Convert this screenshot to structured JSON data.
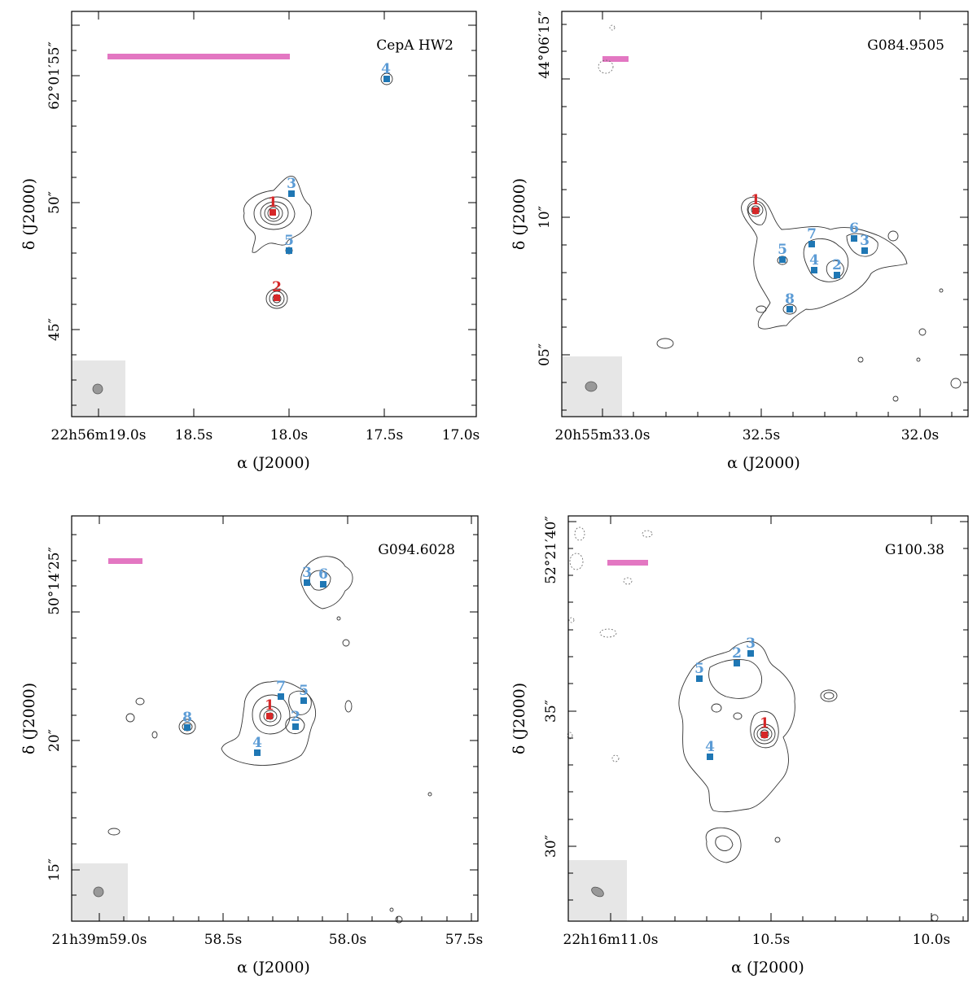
{
  "chart_data": [
    {
      "type": "scatter",
      "title": "CepA HW2",
      "xlabel": "α (J2000)",
      "ylabel": "δ (J2000)",
      "xticks": [
        "22h56m19.0s",
        "18.5s",
        "18.0s",
        "17.5s",
        "17.0s"
      ],
      "yticks": [
        "62°01′55″",
        "50″",
        "45″"
      ],
      "colors": {
        "primary": "#d62728",
        "secondary": "#1f77b4",
        "scalebar": "#e377c2",
        "beam_box": "#e6e6e6"
      },
      "sources": [
        {
          "id": "1",
          "kind": "primary"
        },
        {
          "id": "2",
          "kind": "primary"
        },
        {
          "id": "3",
          "kind": "secondary"
        },
        {
          "id": "4",
          "kind": "secondary"
        },
        {
          "id": "5",
          "kind": "secondary"
        }
      ]
    },
    {
      "type": "scatter",
      "title": "G084.9505",
      "xlabel": "α (J2000)",
      "ylabel": "δ (J2000)",
      "xticks": [
        "20h55m33.0s",
        "32.5s",
        "32.0s"
      ],
      "yticks": [
        "44°06′15″",
        "10″",
        "05″"
      ],
      "colors": {
        "primary": "#d62728",
        "secondary": "#1f77b4",
        "scalebar": "#e377c2",
        "beam_box": "#e6e6e6"
      },
      "sources": [
        {
          "id": "1",
          "kind": "primary"
        },
        {
          "id": "2",
          "kind": "secondary"
        },
        {
          "id": "3",
          "kind": "secondary"
        },
        {
          "id": "4",
          "kind": "secondary"
        },
        {
          "id": "5",
          "kind": "secondary"
        },
        {
          "id": "6",
          "kind": "secondary"
        },
        {
          "id": "7",
          "kind": "secondary"
        },
        {
          "id": "8",
          "kind": "secondary"
        }
      ]
    },
    {
      "type": "scatter",
      "title": "G094.6028",
      "xlabel": "α (J2000)",
      "ylabel": "δ (J2000)",
      "xticks": [
        "21h39m59.0s",
        "58.5s",
        "58.0s",
        "57.5s"
      ],
      "yticks": [
        "50°14′25″",
        "20″",
        "15″"
      ],
      "colors": {
        "primary": "#d62728",
        "secondary": "#1f77b4",
        "scalebar": "#e377c2",
        "beam_box": "#e6e6e6"
      },
      "sources": [
        {
          "id": "1",
          "kind": "primary"
        },
        {
          "id": "2",
          "kind": "secondary"
        },
        {
          "id": "3",
          "kind": "secondary"
        },
        {
          "id": "4",
          "kind": "secondary"
        },
        {
          "id": "5",
          "kind": "secondary"
        },
        {
          "id": "6",
          "kind": "secondary"
        },
        {
          "id": "7",
          "kind": "secondary"
        },
        {
          "id": "8",
          "kind": "secondary"
        }
      ]
    },
    {
      "type": "scatter",
      "title": "G100.38",
      "xlabel": "α (J2000)",
      "ylabel": "δ (J2000)",
      "xticks": [
        "22h16m11.0s",
        "10.5s",
        "10.0s"
      ],
      "yticks": [
        "52°21′40″",
        "35″",
        "30″"
      ],
      "colors": {
        "primary": "#d62728",
        "secondary": "#1f77b4",
        "scalebar": "#e377c2",
        "beam_box": "#e6e6e6"
      },
      "sources": [
        {
          "id": "1",
          "kind": "primary"
        },
        {
          "id": "2",
          "kind": "secondary"
        },
        {
          "id": "3",
          "kind": "secondary"
        },
        {
          "id": "4",
          "kind": "secondary"
        },
        {
          "id": "5",
          "kind": "secondary"
        }
      ]
    }
  ]
}
